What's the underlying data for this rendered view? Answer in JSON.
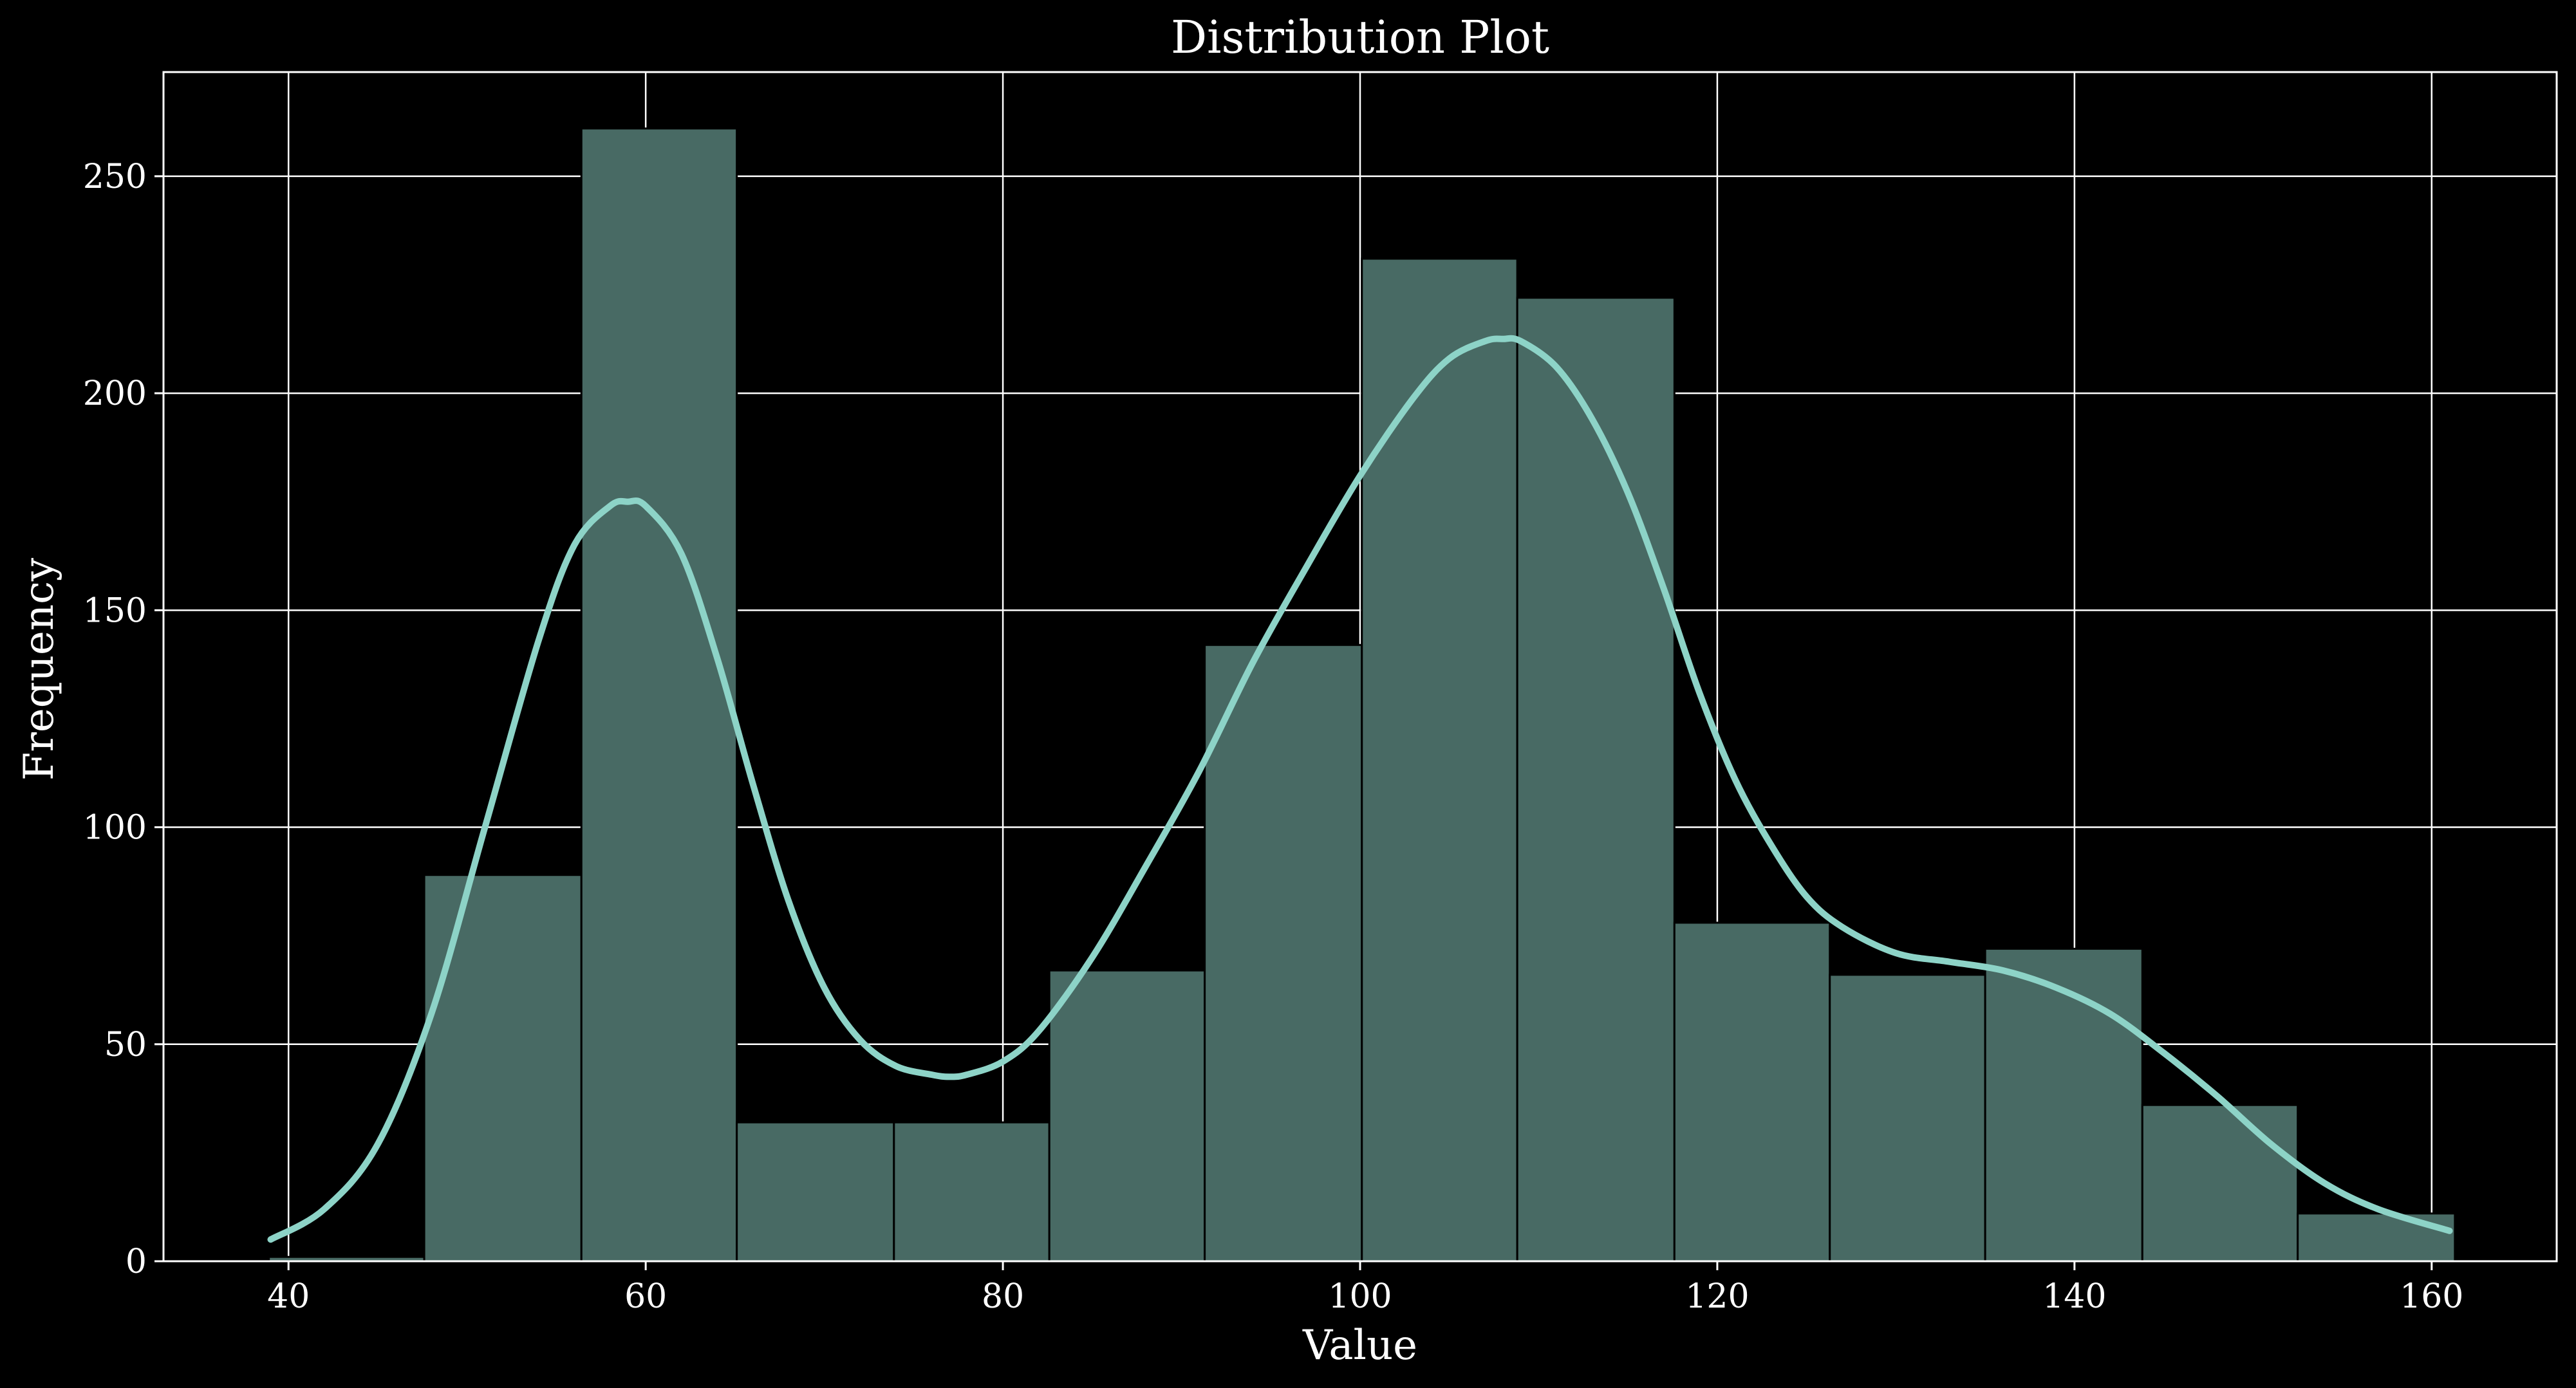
{
  "chart_data": {
    "type": "bar",
    "title": "Distribution Plot",
    "xlabel": "Value",
    "ylabel": "Frequency",
    "xlim": [
      33,
      167
    ],
    "ylim": [
      0,
      274
    ],
    "xticks": [
      40,
      60,
      80,
      100,
      120,
      140,
      160
    ],
    "yticks": [
      0,
      50,
      100,
      150,
      200,
      250
    ],
    "grid": true,
    "legend": "none",
    "colors": {
      "background": "#000000",
      "bar_fill": "#486a64",
      "bar_edge": "#000000",
      "kde_line": "#8dd3c7",
      "grid": "#ffffff",
      "text": "#ffffff"
    },
    "bins": [
      {
        "start": 38.9,
        "end": 47.6,
        "count": 1
      },
      {
        "start": 47.6,
        "end": 56.4,
        "count": 89
      },
      {
        "start": 56.4,
        "end": 65.1,
        "count": 261
      },
      {
        "start": 65.1,
        "end": 73.9,
        "count": 32
      },
      {
        "start": 73.9,
        "end": 82.6,
        "count": 32
      },
      {
        "start": 82.6,
        "end": 91.3,
        "count": 67
      },
      {
        "start": 91.3,
        "end": 100.1,
        "count": 142
      },
      {
        "start": 100.1,
        "end": 108.8,
        "count": 231
      },
      {
        "start": 108.8,
        "end": 117.6,
        "count": 222
      },
      {
        "start": 117.6,
        "end": 126.3,
        "count": 78
      },
      {
        "start": 126.3,
        "end": 135.0,
        "count": 66
      },
      {
        "start": 135.0,
        "end": 143.8,
        "count": 72
      },
      {
        "start": 143.8,
        "end": 152.5,
        "count": 36
      },
      {
        "start": 152.5,
        "end": 161.3,
        "count": 11
      }
    ],
    "kde": {
      "x": [
        39,
        42,
        45,
        48,
        51,
        54,
        56,
        58,
        59,
        60,
        62,
        64,
        66,
        68,
        70,
        72,
        74,
        76,
        77,
        78,
        80,
        82,
        85,
        88,
        91,
        94,
        97,
        100,
        103,
        105,
        107,
        108,
        109,
        111,
        113,
        115,
        117,
        119,
        121,
        123,
        125,
        127,
        130,
        133,
        136,
        139,
        142,
        145,
        148,
        151,
        154,
        157,
        161
      ],
      "y": [
        5,
        12,
        27,
        57,
        100,
        143,
        165,
        174,
        175,
        174,
        163,
        139,
        110,
        83,
        63,
        51,
        45,
        43,
        42.5,
        43,
        46,
        53,
        70,
        91,
        113,
        138,
        160,
        181,
        199,
        208,
        212,
        212.5,
        212,
        206,
        194,
        177,
        155,
        131,
        111,
        96,
        84,
        77,
        71,
        69,
        67,
        63,
        57,
        48,
        38,
        27,
        18,
        12,
        7
      ]
    }
  }
}
